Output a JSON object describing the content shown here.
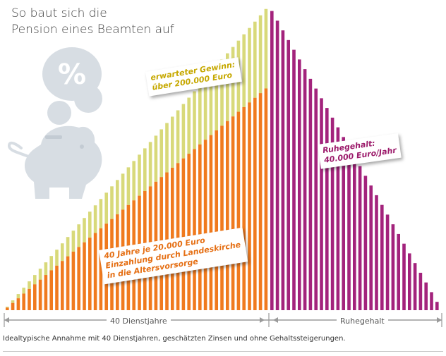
{
  "title": {
    "line1": "So baut sich die",
    "line2": "Pension eines Beamten auf"
  },
  "labels": {
    "gain": {
      "line1": "erwarteter Gewinn:",
      "line2": "über 200.000 Euro"
    },
    "payment": {
      "line1": "40 Jahre je 20.000 Euro",
      "line2": "Einzahlung durch Landeskirche",
      "line3": "in die Altersvorsorge"
    },
    "pension": {
      "line1": "Ruhegehalt:",
      "line2": "40.000 Euro/Jahr"
    }
  },
  "axis": {
    "service_years": "40 Dienstjahre",
    "pension": "Ruhegehalt"
  },
  "footnote": "Idealtypische Annahme mit 40 Dienstjahren, geschätzten Zinsen und ohne Gehaltssteigerungen.",
  "icons": {
    "piggy_bank": "piggy-bank-icon",
    "coin": "percent-coin-icon"
  },
  "colors": {
    "payment": "#f07a1e",
    "gain": "#d8d97a",
    "pension": "#a3237c",
    "icon": "#d7dde3",
    "axis": "#9a9a9a"
  }
}
